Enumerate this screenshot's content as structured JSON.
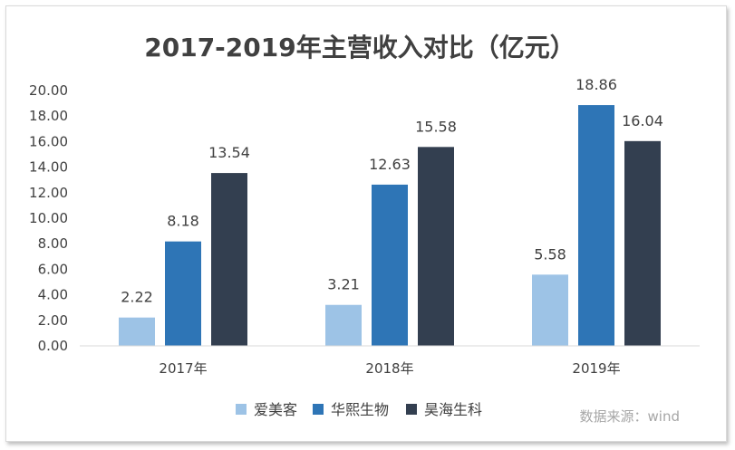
{
  "chart_data": {
    "type": "bar",
    "title": "2017-2019年主营收入对比（亿元）",
    "categories": [
      "2017年",
      "2018年",
      "2019年"
    ],
    "series": [
      {
        "name": "爱美客",
        "color": "#9dc3e6",
        "values": [
          2.22,
          3.21,
          5.58
        ]
      },
      {
        "name": "华熙生物",
        "color": "#2e75b6",
        "values": [
          8.18,
          12.63,
          18.86
        ]
      },
      {
        "name": "昊海生科",
        "color": "#333f50",
        "values": [
          13.54,
          15.58,
          16.04
        ]
      }
    ],
    "ylim": [
      0,
      20
    ],
    "yticks": [
      0,
      2,
      4,
      6,
      8,
      10,
      12,
      14,
      16,
      18,
      20
    ],
    "ytick_labels": [
      "0.00",
      "2.00",
      "4.00",
      "6.00",
      "8.00",
      "10.00",
      "12.00",
      "14.00",
      "16.00",
      "18.00",
      "20.00"
    ],
    "data_labels": [
      [
        "2.22",
        "3.21",
        "5.58"
      ],
      [
        "8.18",
        "12.63",
        "18.86"
      ],
      [
        "13.54",
        "15.58",
        "16.04"
      ]
    ],
    "xlabel": "",
    "ylabel": "",
    "legend_position": "bottom",
    "grid": false
  },
  "source_note": "数据来源：wind",
  "colors": {
    "axis": "#d9d9d9",
    "text": "#404040",
    "muted": "#a6a6a6"
  }
}
